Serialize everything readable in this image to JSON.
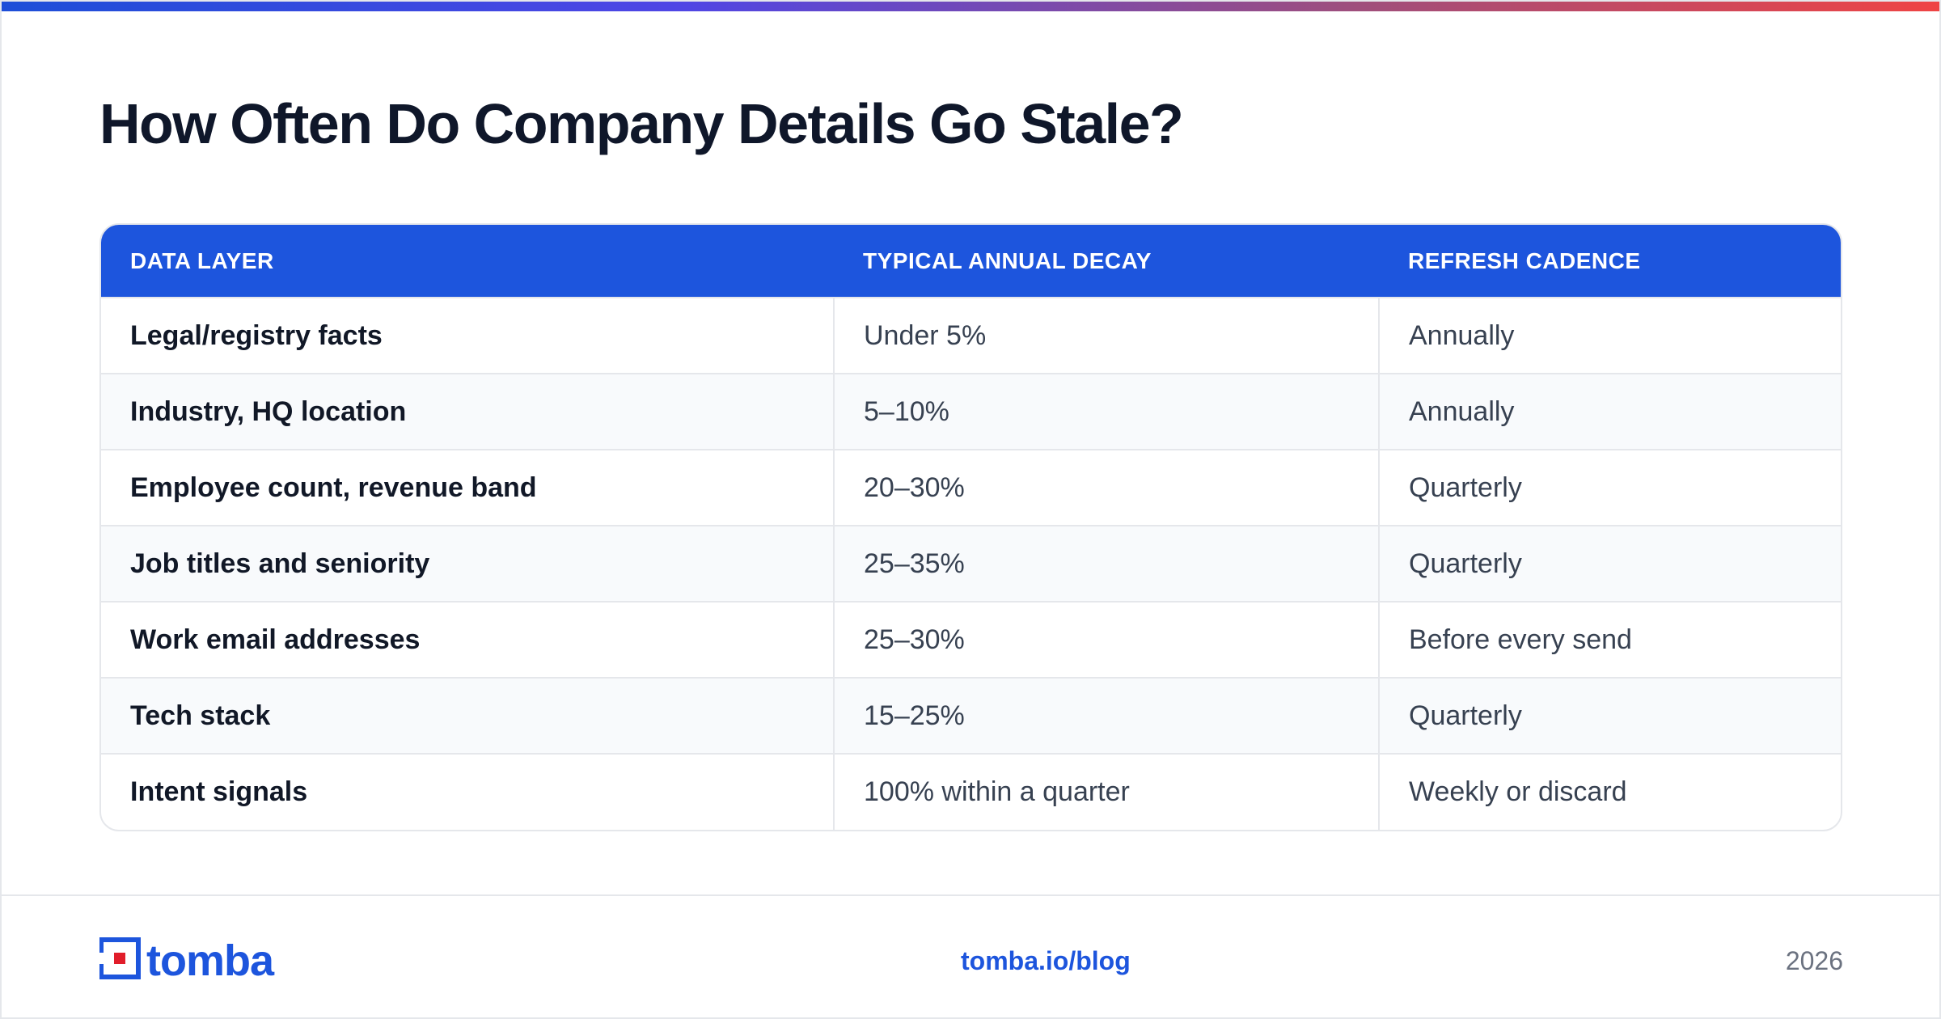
{
  "header": {
    "title": "How Often Do Company Details Go Stale?"
  },
  "table": {
    "columns": [
      "DATA LAYER",
      "TYPICAL ANNUAL DECAY",
      "REFRESH CADENCE"
    ],
    "rows": [
      {
        "layer": "Legal/registry facts",
        "decay": "Under 5%",
        "cadence": "Annually"
      },
      {
        "layer": "Industry, HQ location",
        "decay": "5–10%",
        "cadence": "Annually"
      },
      {
        "layer": "Employee count, revenue band",
        "decay": "20–30%",
        "cadence": "Quarterly"
      },
      {
        "layer": "Job titles and seniority",
        "decay": "25–35%",
        "cadence": "Quarterly"
      },
      {
        "layer": "Work email addresses",
        "decay": "25–30%",
        "cadence": "Before every send"
      },
      {
        "layer": "Tech stack",
        "decay": "15–25%",
        "cadence": "Quarterly"
      },
      {
        "layer": "Intent signals",
        "decay": "100% within a quarter",
        "cadence": "Weekly or discard"
      }
    ]
  },
  "footer": {
    "brand": "tomba",
    "url": "tomba.io/blog",
    "year": "2026"
  },
  "colors": {
    "accent": "#1d55dd",
    "logo_red": "#e11d2a",
    "header_text": "#ffffff"
  },
  "icons": {
    "logo": "tomba-logo-icon"
  }
}
